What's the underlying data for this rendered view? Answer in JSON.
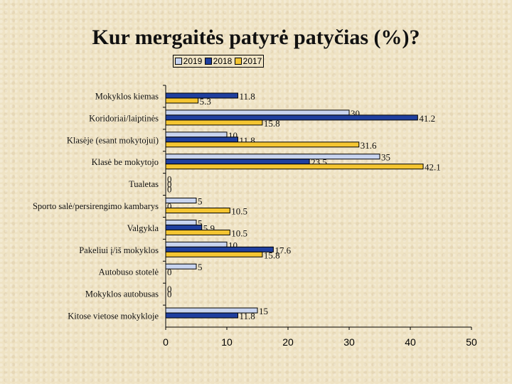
{
  "chart_data": {
    "type": "bar",
    "orientation": "horizontal",
    "title": "Kur mergaitės patyrė patyčias (%)?",
    "categories": [
      "Mokyklos kiemas",
      "Koridoriai/laiptinės",
      "Klasėje (esant mokytojui)",
      "Klasė be mokytojo",
      "Tualetas",
      "Sporto salė/persirengimo kambarys",
      "Valgykla",
      "Pakeliui į/iš mokyklos",
      "Autobuso stotelė",
      "Mokyklos autobusas",
      "Kitose vietose mokykloje"
    ],
    "series": [
      {
        "name": "2019",
        "color": "#c8d4ef",
        "values": [
          null,
          30,
          10,
          35,
          0,
          5,
          5,
          10,
          5,
          0,
          15
        ],
        "labels": [
          "",
          "30",
          "10",
          "35",
          "0",
          "5",
          "5",
          "10",
          "5",
          "0",
          "15"
        ]
      },
      {
        "name": "2018",
        "color": "#1f3f9f",
        "values": [
          11.8,
          41.2,
          11.8,
          23.5,
          0,
          0,
          5.9,
          17.6,
          0,
          0,
          11.8
        ],
        "labels": [
          "11.8",
          "41.2",
          "11.8",
          "23.5",
          "0",
          "0",
          "5.9",
          "17.6",
          "0",
          "0",
          "11.8"
        ]
      },
      {
        "name": "2017",
        "color": "#f4c531",
        "values": [
          5.3,
          15.8,
          31.6,
          42.1,
          0,
          10.5,
          10.5,
          15.8,
          0,
          0,
          null
        ],
        "labels": [
          "5.3",
          "15.8",
          "31.6",
          "42.1",
          "0",
          "10.5",
          "10.5",
          "15.8",
          "",
          "",
          ""
        ]
      }
    ],
    "xlim": [
      0,
      50
    ],
    "xticks": [
      "0",
      "10",
      "20",
      "30",
      "40",
      "50"
    ],
    "legend_position": "top",
    "grid": false
  }
}
